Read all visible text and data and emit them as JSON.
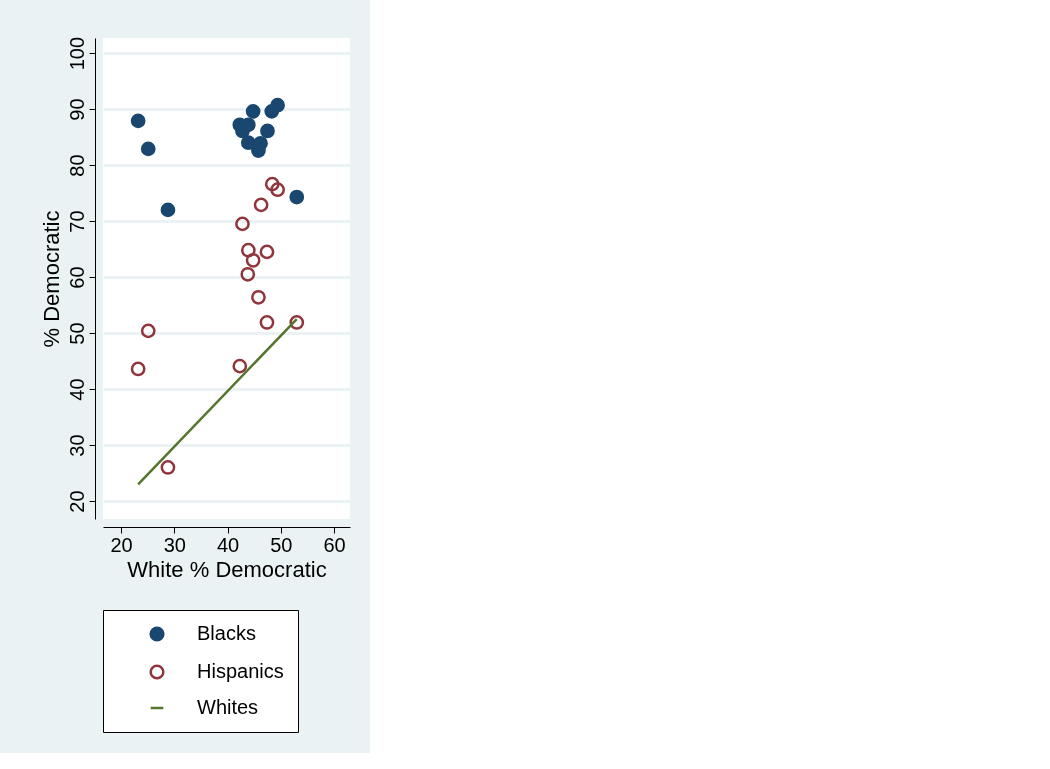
{
  "chart_data": {
    "type": "scatter",
    "xlabel": "White % Democratic",
    "ylabel": "% Democratic",
    "xlim": [
      16.6,
      63
    ],
    "ylim": [
      16.8,
      102.7
    ],
    "xticks": [
      20,
      30,
      40,
      50,
      60
    ],
    "yticks": [
      20,
      30,
      40,
      50,
      60,
      70,
      80,
      90,
      100
    ],
    "grid": "y",
    "legend": "bottom",
    "series": [
      {
        "name": "Blacks",
        "color": "#1a476f",
        "marker": "circle",
        "x": [
          23.2,
          25.1,
          28.8,
          42.3,
          43.9,
          42.8,
          44.8,
          43.9,
          46.2,
          45.8,
          47.5,
          48.3,
          49.4,
          53.0
        ],
        "values": [
          87.9,
          82.9,
          72.0,
          87.2,
          87.2,
          86.1,
          89.6,
          84.0,
          83.9,
          82.6,
          86.1,
          89.6,
          90.7,
          74.3
        ]
      },
      {
        "name": "Hispanics",
        "color": "#90353b",
        "marker": "circle",
        "x": [
          48.4,
          49.4,
          46.3,
          42.8,
          43.9,
          47.4,
          44.8,
          43.8,
          45.8,
          47.4,
          53.0,
          25.1,
          42.3,
          23.2,
          28.8
        ],
        "values": [
          76.6,
          75.6,
          72.9,
          69.5,
          64.8,
          64.5,
          63.0,
          60.5,
          56.4,
          51.9,
          51.9,
          50.4,
          44.1,
          43.6,
          26.0
        ]
      },
      {
        "name": "Whites",
        "color": "#55752f",
        "type": "line",
        "marker": "none",
        "line_style": "solid",
        "x": [
          23.2,
          53.0
        ],
        "values": [
          23.0,
          52.5
        ]
      }
    ]
  }
}
